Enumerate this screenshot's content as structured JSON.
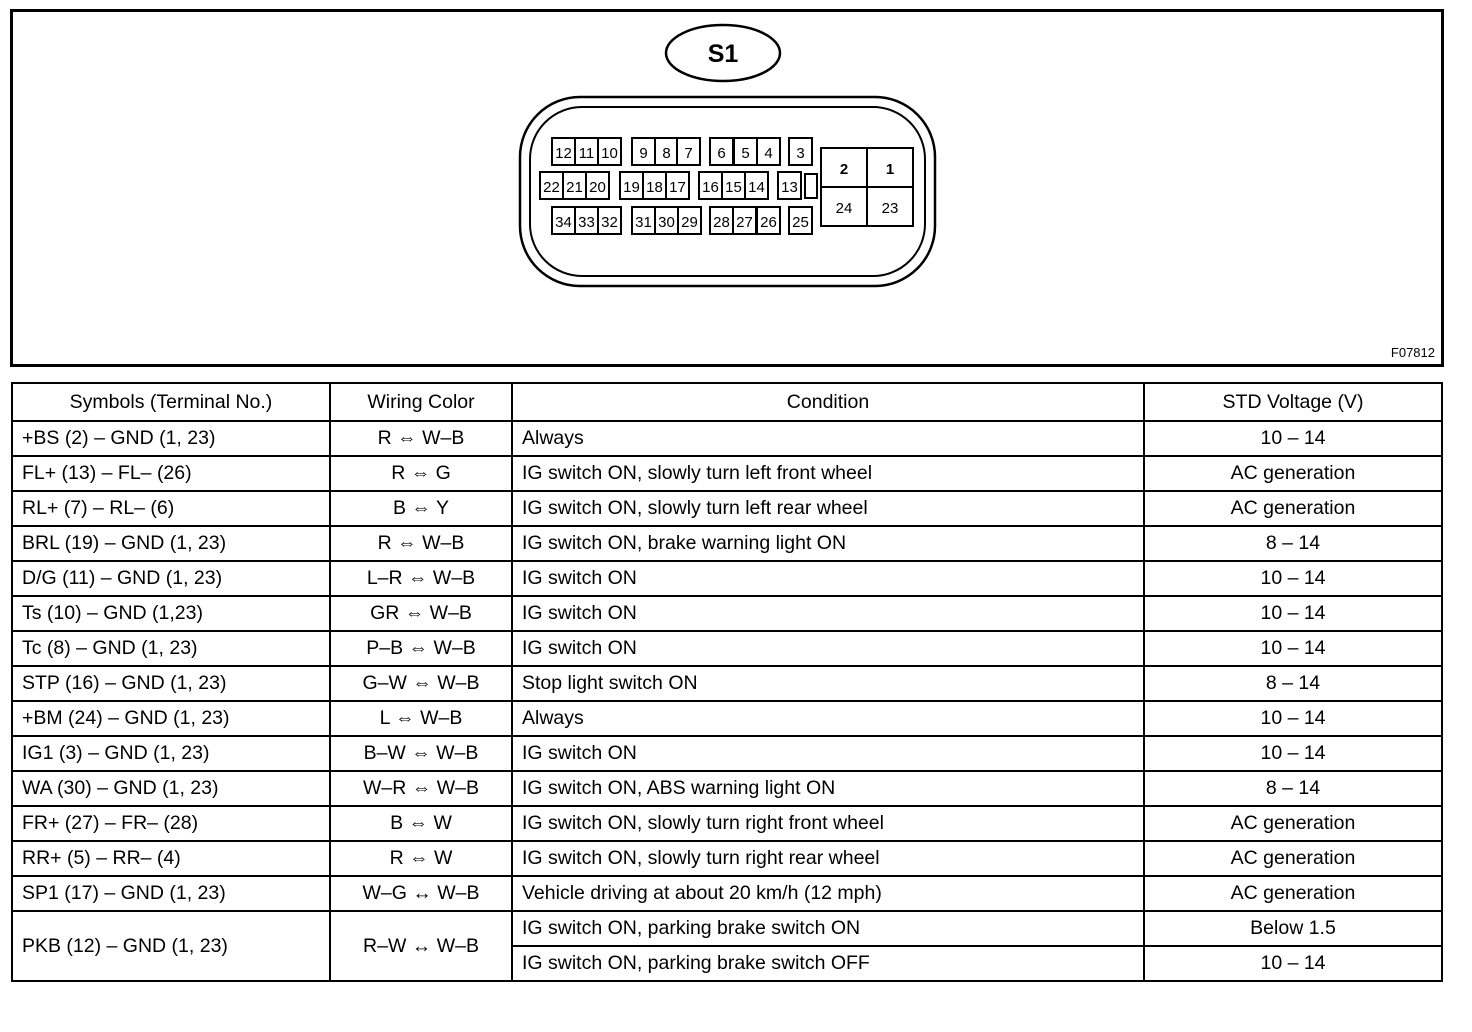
{
  "diagram": {
    "connector_label": "S1",
    "figure_code": "F07812",
    "pins": {
      "top": [
        "12",
        "11",
        "10",
        "9",
        "8",
        "7",
        "6",
        "5",
        "4",
        "3"
      ],
      "middle": [
        "22",
        "21",
        "20",
        "19",
        "18",
        "17",
        "16",
        "15",
        "14",
        "13"
      ],
      "bottom": [
        "34",
        "33",
        "32",
        "31",
        "30",
        "29",
        "28",
        "27",
        "26",
        "25"
      ],
      "large": [
        "2",
        "1",
        "24",
        "23"
      ]
    }
  },
  "table": {
    "headers": [
      "Symbols (Terminal No.)",
      "Wiring Color",
      "Condition",
      "STD Voltage (V)"
    ],
    "rows": [
      {
        "symbols": "+BS (2) – GND (1, 23)",
        "wiring": "R ⇔ W–B",
        "conditions": [
          [
            "Always",
            "10 – 14"
          ]
        ]
      },
      {
        "symbols": "FL+ (13) – FL– (26)",
        "wiring": "R ⇔ G",
        "conditions": [
          [
            "IG switch ON, slowly turn left front wheel",
            "AC generation"
          ]
        ]
      },
      {
        "symbols": "RL+ (7) – RL– (6)",
        "wiring": "B ⇔ Y",
        "conditions": [
          [
            "IG switch ON, slowly turn left rear wheel",
            "AC generation"
          ]
        ]
      },
      {
        "symbols": "BRL (19) – GND (1, 23)",
        "wiring": "R ⇔ W–B",
        "conditions": [
          [
            "IG switch ON, brake warning light ON",
            "8 – 14"
          ]
        ]
      },
      {
        "symbols": "D/G (11) – GND (1, 23)",
        "wiring": "L–R ⇔ W–B",
        "conditions": [
          [
            "IG switch ON",
            "10 – 14"
          ]
        ]
      },
      {
        "symbols": "Ts (10) – GND (1,23)",
        "wiring": "GR ⇔ W–B",
        "conditions": [
          [
            "IG switch ON",
            "10 – 14"
          ]
        ]
      },
      {
        "symbols": "Tc (8) – GND (1, 23)",
        "wiring": "P–B ⇔ W–B",
        "conditions": [
          [
            "IG switch ON",
            "10 – 14"
          ]
        ]
      },
      {
        "symbols": "STP (16) – GND (1, 23)",
        "wiring": "G–W ⇔ W–B",
        "conditions": [
          [
            "Stop light switch ON",
            "8 – 14"
          ]
        ]
      },
      {
        "symbols": "+BM (24) – GND (1, 23)",
        "wiring": "L ⇔ W–B",
        "conditions": [
          [
            "Always",
            "10 – 14"
          ]
        ]
      },
      {
        "symbols": "IG1 (3) – GND (1, 23)",
        "wiring": "B–W ⇔ W–B",
        "conditions": [
          [
            "IG switch ON",
            "10 – 14"
          ]
        ]
      },
      {
        "symbols": "WA (30) – GND (1, 23)",
        "wiring": "W–R ⇔ W–B",
        "conditions": [
          [
            "IG switch ON, ABS warning light ON",
            "8 – 14"
          ]
        ]
      },
      {
        "symbols": "FR+ (27) – FR– (28)",
        "wiring": "B ⇔ W",
        "conditions": [
          [
            "IG switch ON, slowly turn right front wheel",
            "AC generation"
          ]
        ]
      },
      {
        "symbols": "RR+ (5) – RR– (4)",
        "wiring": "R ⇔ W",
        "conditions": [
          [
            "IG switch ON, slowly turn right rear wheel",
            "AC generation"
          ]
        ]
      },
      {
        "symbols": "SP1 (17) – GND (1, 23)",
        "wiring": "W–G ↔ W–B",
        "conditions": [
          [
            "Vehicle driving at about 20 km/h (12 mph)",
            "AC generation"
          ]
        ]
      },
      {
        "symbols": "PKB (12) – GND (1, 23)",
        "wiring": "R–W ↔ W–B",
        "conditions": [
          [
            "IG switch ON, parking brake switch ON",
            "Below 1.5"
          ],
          [
            "IG switch ON, parking brake switch OFF",
            "10 – 14"
          ]
        ]
      }
    ]
  }
}
